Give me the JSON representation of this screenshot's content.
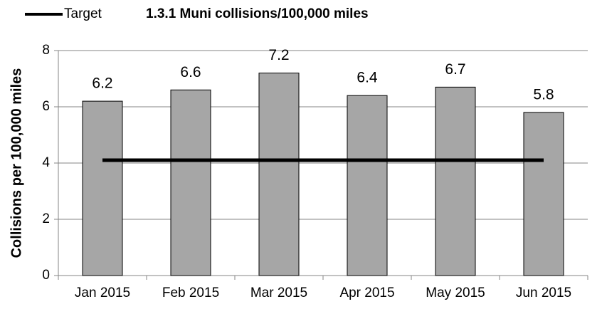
{
  "chart_data": {
    "type": "bar",
    "title": "1.3.1 Muni collisions/100,000 miles",
    "y_label": "Collisions per 100,000 miles",
    "categories": [
      "Jan 2015",
      "Feb 2015",
      "Mar 2015",
      "Apr 2015",
      "May 2015",
      "Jun 2015"
    ],
    "series": [
      {
        "type": "bar",
        "color": "#a6a6a6",
        "values": [
          6.2,
          6.6,
          7.2,
          6.4,
          6.7,
          5.8
        ]
      },
      {
        "type": "line",
        "name": "Target",
        "color": "#000000",
        "values": [
          4.1,
          4.1,
          4.1,
          4.1,
          4.1,
          4.1
        ]
      }
    ],
    "ylim": [
      0,
      8
    ],
    "yticks": [
      0,
      2,
      4,
      6,
      8
    ],
    "grid": true,
    "legend": "top-left"
  }
}
